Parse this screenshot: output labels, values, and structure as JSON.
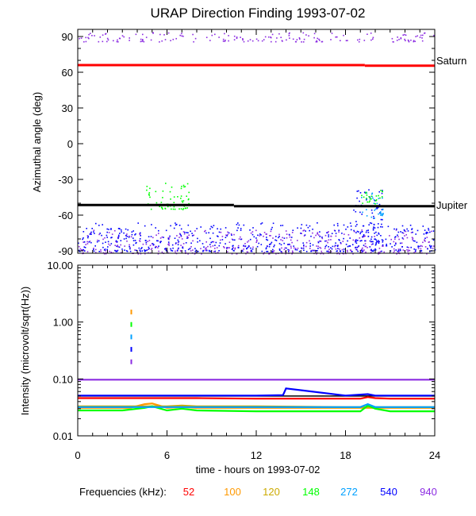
{
  "chart_data": [
    {
      "type": "scatter",
      "title": "URAP Direction Finding  1993-07-02",
      "ylabel": "Azimuthal angle (deg)",
      "xlim": [
        0,
        24
      ],
      "ylim": [
        -92,
        96
      ],
      "yticks": [
        "90",
        "60",
        "30",
        "0",
        "-30",
        "-60",
        "-90"
      ],
      "reference_lines": [
        {
          "name": "Saturn",
          "segments": [
            {
              "x": [
                0,
                19.3
              ],
              "y": 66
            },
            {
              "x": [
                19.3,
                24
              ],
              "y": 65.5
            }
          ],
          "color": "#ff0000"
        },
        {
          "name": "Jupiter",
          "segments": [
            {
              "x": [
                0,
                10.5
              ],
              "y": -51.5
            },
            {
              "x": [
                10.5,
                24
              ],
              "y": -52.5
            }
          ],
          "color": "#000000"
        }
      ],
      "series": [
        {
          "frequency_khz": 940,
          "color": "#8b2be2",
          "bands": [
            {
              "x": [
                0,
                24
              ],
              "y": [
                -92,
                -72
              ]
            },
            {
              "x": [
                0,
                24
              ],
              "y": [
                86,
                94
              ]
            }
          ]
        },
        {
          "frequency_khz": 540,
          "color": "#0000ff",
          "bands": [
            {
              "x": [
                0,
                24
              ],
              "y": [
                -90,
                -66
              ]
            },
            {
              "x": [
                18.5,
                20.5
              ],
              "y": [
                -82,
                -38
              ]
            }
          ]
        },
        {
          "frequency_khz": 272,
          "color": "#00a0ff",
          "bands": [
            {
              "x": [
                19,
                20.5
              ],
              "y": [
                -62,
                -40
              ]
            }
          ]
        },
        {
          "frequency_khz": 148,
          "color": "#00ff00",
          "bands": [
            {
              "x": [
                4.5,
                7.5
              ],
              "y": [
                -55,
                -32
              ]
            },
            {
              "x": [
                19,
                20.5
              ],
              "y": [
                -50,
                -38
              ]
            }
          ]
        }
      ]
    },
    {
      "type": "line",
      "ylabel": "Intensity (microvolt/sqrt(Hz))",
      "xlabel": "time - hours on 1993-07-02",
      "xlim": [
        0,
        24
      ],
      "xticks": [
        "0",
        "6",
        "12",
        "18",
        "24"
      ],
      "ylim": [
        0.01,
        10
      ],
      "yscale": "log",
      "yticks": [
        "10.00",
        "1.00",
        "0.10",
        "0.01"
      ],
      "reference_lines": [
        {
          "y": 0.05,
          "color": "#000000"
        }
      ],
      "series": [
        {
          "frequency_khz": 52,
          "color": "#ff0000",
          "x": [
            0,
            4,
            8,
            12,
            16,
            19,
            19.5,
            20,
            21,
            24
          ],
          "y": [
            0.046,
            0.046,
            0.046,
            0.045,
            0.045,
            0.045,
            0.048,
            0.046,
            0.045,
            0.045
          ]
        },
        {
          "frequency_khz": 100,
          "color": "#ff9900",
          "x": [
            0,
            3.5,
            4.5,
            5,
            5.5,
            6,
            7,
            8,
            12,
            18,
            24
          ],
          "y": [
            0.031,
            0.031,
            0.036,
            0.037,
            0.034,
            0.031,
            0.032,
            0.031,
            0.031,
            0.031,
            0.031
          ]
        },
        {
          "frequency_khz": 120,
          "color": "#ccaa00",
          "x": [
            0,
            6,
            7,
            8,
            12,
            18,
            24
          ],
          "y": [
            0.033,
            0.033,
            0.034,
            0.033,
            0.033,
            0.032,
            0.032
          ]
        },
        {
          "frequency_khz": 148,
          "color": "#00ff00",
          "x": [
            0,
            3,
            4.5,
            5,
            6,
            7,
            8,
            12,
            16,
            19,
            19.5,
            20,
            21,
            24
          ],
          "y": [
            0.028,
            0.028,
            0.031,
            0.033,
            0.028,
            0.03,
            0.028,
            0.027,
            0.027,
            0.027,
            0.034,
            0.03,
            0.027,
            0.027
          ]
        },
        {
          "frequency_khz": 272,
          "color": "#00a0ff",
          "x": [
            0,
            6,
            12,
            18,
            19,
            19.5,
            20,
            21,
            24
          ],
          "y": [
            0.032,
            0.032,
            0.032,
            0.032,
            0.032,
            0.036,
            0.032,
            0.032,
            0.032
          ]
        },
        {
          "frequency_khz": 540,
          "color": "#0000ff",
          "x": [
            0,
            6,
            12,
            13.8,
            14,
            18,
            19.5,
            20,
            24
          ],
          "y": [
            0.051,
            0.051,
            0.051,
            0.052,
            0.068,
            0.051,
            0.054,
            0.051,
            0.051
          ]
        },
        {
          "frequency_khz": 940,
          "color": "#8b2be2",
          "x": [
            0,
            6,
            12,
            18,
            24
          ],
          "y": [
            0.097,
            0.097,
            0.097,
            0.097,
            0.097
          ]
        }
      ],
      "spikes": [
        {
          "x": 3.6,
          "y": [
            0.2,
            1.5
          ],
          "colors": [
            "#ff9900",
            "#00ff00",
            "#00a0ff",
            "#0000ff",
            "#8b2be2"
          ]
        }
      ]
    }
  ],
  "legend": {
    "label": "Frequencies (kHz):",
    "items": [
      {
        "text": "52",
        "color": "#ff0000"
      },
      {
        "text": "100",
        "color": "#ff9900"
      },
      {
        "text": "120",
        "color": "#ccaa00"
      },
      {
        "text": "148",
        "color": "#00ff00"
      },
      {
        "text": "272",
        "color": "#00a0ff"
      },
      {
        "text": "540",
        "color": "#0000ff"
      },
      {
        "text": "940",
        "color": "#8b2be2"
      }
    ]
  }
}
